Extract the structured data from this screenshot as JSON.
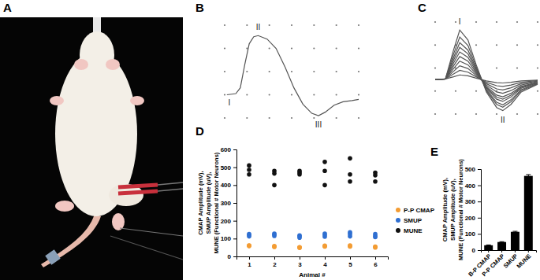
{
  "chart_data": [
    {
      "type": "image",
      "title": "A"
    },
    {
      "type": "line",
      "title": "B",
      "x": [
        0.6,
        1.0,
        1.2,
        1.4,
        1.6,
        1.8,
        2.0,
        2.4,
        2.8,
        3.2,
        3.6,
        4.0,
        4.4,
        4.7,
        5.0,
        5.4,
        5.8,
        6.2,
        6.5
      ],
      "values": [
        0,
        0.05,
        0.3,
        1.3,
        2.2,
        2.5,
        2.55,
        2.4,
        2.0,
        1.2,
        0.3,
        -0.4,
        -0.8,
        -0.9,
        -0.75,
        -0.45,
        -0.3,
        -0.25,
        -0.2
      ],
      "color": "#555555",
      "xlim": [
        0.5,
        6.5
      ],
      "xticks": [
        0.5,
        1.5,
        2.5,
        3.5,
        4.5,
        5.5,
        6.5
      ],
      "ylim": [
        -1,
        3
      ],
      "yticks": [
        -1,
        0,
        1,
        2,
        3
      ],
      "grid": true,
      "tick_labels": false,
      "annotations": [
        "I",
        "II",
        "III"
      ]
    },
    {
      "type": "line",
      "title": "C",
      "x": [
        0,
        0.5,
        0.9,
        1.2,
        1.6,
        2.0,
        2.5,
        3.0,
        3.3,
        3.7,
        4.2,
        5.0
      ],
      "series": [
        {
          "values": [
            0,
            0.05,
            0.24,
            0.4,
            0.32,
            0.12,
            -0.12,
            -0.27,
            -0.3,
            -0.24,
            -0.12,
            -0.05
          ]
        },
        {
          "values": [
            0,
            0.05,
            0.48,
            0.8,
            0.64,
            0.24,
            -0.24,
            -0.54,
            -0.6,
            -0.48,
            -0.24,
            -0.09
          ]
        },
        {
          "values": [
            0,
            0.05,
            0.72,
            1.2,
            0.96,
            0.36,
            -0.36,
            -0.81,
            -0.9,
            -0.72,
            -0.36,
            -0.14
          ]
        },
        {
          "values": [
            0,
            0.05,
            0.96,
            1.6,
            1.28,
            0.48,
            -0.48,
            -1.08,
            -1.2,
            -0.96,
            -0.48,
            -0.18
          ]
        },
        {
          "values": [
            0,
            0.05,
            1.2,
            2.0,
            1.6,
            0.6,
            -0.6,
            -1.35,
            -1.5,
            -1.2,
            -0.6,
            -0.23
          ]
        },
        {
          "values": [
            0,
            0.05,
            1.44,
            2.4,
            1.92,
            0.72,
            -0.68,
            -1.53,
            -1.7,
            -1.36,
            -0.68,
            -0.26
          ]
        },
        {
          "values": [
            0,
            0.05,
            1.68,
            2.8,
            2.24,
            0.84,
            -0.76,
            -1.71,
            -1.9,
            -1.52,
            -0.76,
            -0.29
          ]
        },
        {
          "values": [
            0,
            0.05,
            1.92,
            3.2,
            2.56,
            0.96,
            -0.88,
            -1.98,
            -2.2,
            -1.76,
            -0.88,
            -0.33
          ]
        },
        {
          "values": [
            0,
            0.05,
            2.22,
            3.7,
            2.96,
            1.11,
            -0.96,
            -2.16,
            -2.4,
            -1.92,
            -0.96,
            -0.36
          ]
        },
        {
          "values": [
            0,
            0.05,
            2.58,
            4.3,
            3.44,
            1.29,
            -1.08,
            -2.43,
            -2.7,
            -2.16,
            -1.08,
            -0.41
          ]
        }
      ],
      "color": "#555555",
      "xlim": [
        0,
        5
      ],
      "xticks": [
        0,
        1,
        2,
        3,
        4,
        5
      ],
      "ylim": [
        -3,
        5
      ],
      "yticks": [
        -3,
        -1,
        1,
        3,
        5
      ],
      "grid": true,
      "tick_labels": false,
      "annotations": [
        "I",
        "II"
      ]
    },
    {
      "type": "scatter",
      "title": "D",
      "xlabel": "Animal #",
      "ylabel": [
        "CMAP Amplitude (mV),",
        "SMUP Amplitude (uV),",
        "MUNE (Functional # Motor Neurons)"
      ],
      "xlim": [
        0.5,
        6.5
      ],
      "xticks": [
        1,
        2,
        3,
        4,
        5,
        6
      ],
      "ylim": [
        0,
        600
      ],
      "yticks": [
        0,
        100,
        200,
        300,
        400,
        500,
        600
      ],
      "marker": "circle",
      "legend": "right",
      "series": [
        {
          "name": "P-P CMAP",
          "color": "#f39c33",
          "x": [
            1,
            1,
            1,
            2,
            2,
            2,
            3,
            3,
            3,
            4,
            4,
            4,
            5,
            5,
            5,
            6,
            6,
            6
          ],
          "values": [
            62,
            60,
            58,
            58,
            55,
            53,
            52,
            50,
            48,
            60,
            57,
            55,
            62,
            58,
            55,
            55,
            52,
            50
          ]
        },
        {
          "name": "SMUP",
          "color": "#2f6fd1",
          "x": [
            1,
            1,
            1,
            2,
            2,
            2,
            3,
            3,
            3,
            4,
            4,
            4,
            5,
            5,
            5,
            6,
            6,
            6
          ],
          "values": [
            125,
            120,
            112,
            128,
            122,
            115,
            118,
            112,
            105,
            128,
            120,
            110,
            135,
            125,
            112,
            125,
            115,
            108
          ]
        },
        {
          "name": "MUNE",
          "color": "#111111",
          "x": [
            1,
            1,
            1,
            2,
            2,
            2,
            3,
            3,
            3,
            4,
            4,
            4,
            5,
            5,
            5,
            6,
            6,
            6
          ],
          "values": [
            510,
            485,
            460,
            480,
            465,
            400,
            480,
            470,
            460,
            530,
            480,
            400,
            550,
            460,
            420,
            470,
            455,
            420
          ]
        }
      ]
    },
    {
      "type": "bar",
      "title": "E",
      "ylabel": [
        "CMAP Amplitude (mV),",
        "SMUP Amplitude (uV),",
        "MUNE (Functional # Motor Neurons)"
      ],
      "categories": [
        "B-P CMAP",
        "P-P CMAP",
        "SMUP",
        "MUNE"
      ],
      "values": [
        30,
        50,
        113,
        458
      ],
      "errors": [
        2,
        2,
        3,
        8
      ],
      "color": "#000000",
      "ylim": [
        0,
        500
      ],
      "yticks": [
        0,
        100,
        200,
        300,
        400,
        500
      ]
    }
  ]
}
